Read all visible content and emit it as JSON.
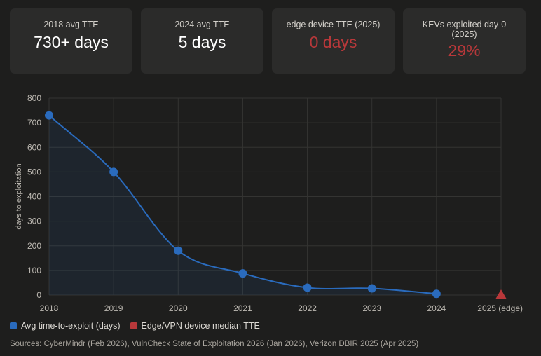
{
  "stats": [
    {
      "label": "2018 avg TTE",
      "value": "730+ days",
      "highlight": false
    },
    {
      "label": "2024 avg TTE",
      "value": "5 days",
      "highlight": false
    },
    {
      "label": "edge device TTE (2025)",
      "value": "0 days",
      "highlight": true
    },
    {
      "label": "KEVs exploited day-0 (2025)",
      "value": "29%",
      "highlight": true
    }
  ],
  "colors": {
    "accent_blue": "#2a6bbd",
    "accent_red": "#b8383a",
    "background": "#1e1e1d",
    "card": "#2b2b2a"
  },
  "chart_data": {
    "type": "line",
    "categories": [
      "2018",
      "2019",
      "2020",
      "2021",
      "2022",
      "2023",
      "2024",
      "2025 (edge)"
    ],
    "series": [
      {
        "name": "Avg time-to-exploit (days)",
        "values": [
          730,
          500,
          180,
          88,
          30,
          27,
          5,
          null
        ],
        "marker": "circle",
        "fill": true,
        "color": "#2a6bbd"
      },
      {
        "name": "Edge/VPN device median TTE",
        "values": [
          null,
          null,
          null,
          null,
          null,
          null,
          null,
          0
        ],
        "marker": "triangle",
        "color": "#b8383a"
      }
    ],
    "ylabel": "days to exploitation",
    "xlabel": "",
    "ylim": [
      0,
      800
    ],
    "yticks": [
      0,
      100,
      200,
      300,
      400,
      500,
      600,
      700,
      800
    ],
    "grid": true,
    "legend_position": "bottom-left"
  },
  "legend": [
    {
      "label": "Avg time-to-exploit (days)",
      "color": "#2a6bbd"
    },
    {
      "label": "Edge/VPN device median TTE",
      "color": "#b8383a"
    }
  ],
  "sources": "Sources: CyberMindr (Feb 2026), VulnCheck State of Exploitation 2026 (Jan 2026), Verizon DBIR 2025 (Apr 2025)"
}
